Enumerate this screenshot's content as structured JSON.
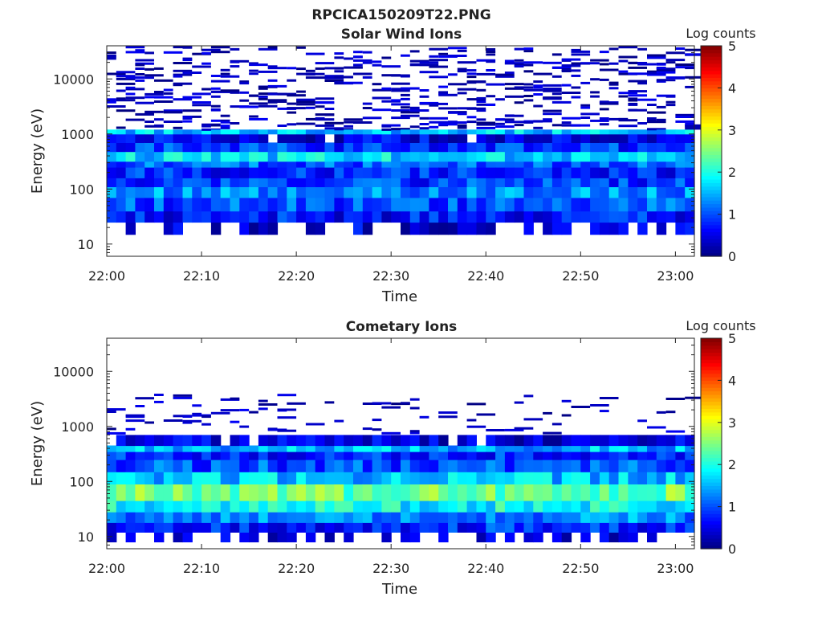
{
  "figure_title": "RPCICA150209T22.PNG",
  "colormap": [
    "#00007f",
    "#0000ff",
    "#007fff",
    "#00ffff",
    "#7fff7f",
    "#ffff00",
    "#ff7f00",
    "#ff0000",
    "#7f0000"
  ],
  "chart_data": [
    {
      "type": "heatmap",
      "title": "Solar Wind Ions",
      "xlabel": "Time",
      "ylabel": "Energy (eV)",
      "y_scale": "log",
      "ylim": [
        6,
        40000
      ],
      "xlim": [
        "22:00",
        "23:02"
      ],
      "x_ticks": [
        "22:00",
        "22:10",
        "22:20",
        "22:30",
        "22:40",
        "22:50",
        "23:00"
      ],
      "y_ticks": [
        "10",
        "100",
        "1000",
        "10000"
      ],
      "colorbar": {
        "label": "Log counts",
        "range": [
          0,
          5
        ],
        "ticks": [
          "0",
          "1",
          "2",
          "3",
          "4",
          "5"
        ]
      },
      "bands": [
        {
          "from": 15,
          "to": 25,
          "level": 0.4
        },
        {
          "from": 25,
          "to": 40,
          "level": 0.7
        },
        {
          "from": 40,
          "to": 70,
          "level": 1.0
        },
        {
          "from": 70,
          "to": 110,
          "level": 1.3
        },
        {
          "from": 110,
          "to": 160,
          "level": 0.9
        },
        {
          "from": 160,
          "to": 250,
          "level": 0.8
        },
        {
          "from": 250,
          "to": 320,
          "level": 1.1
        },
        {
          "from": 320,
          "to": 480,
          "level": 1.7
        },
        {
          "from": 480,
          "to": 700,
          "level": 0.9
        },
        {
          "from": 700,
          "to": 1000,
          "level": 0.5
        },
        {
          "from": 1000,
          "to": 1200,
          "level": 1.6
        }
      ],
      "sparse_above": 1250
    },
    {
      "type": "heatmap",
      "title": "Cometary Ions",
      "xlabel": "Time",
      "ylabel": "Energy (eV)",
      "y_scale": "log",
      "ylim": [
        6,
        40000
      ],
      "xlim": [
        "22:00",
        "23:02"
      ],
      "x_ticks": [
        "22:00",
        "22:10",
        "22:20",
        "22:30",
        "22:40",
        "22:50",
        "23:00"
      ],
      "y_ticks": [
        "10",
        "100",
        "1000",
        "10000"
      ],
      "colorbar": {
        "label": "Log counts",
        "range": [
          0,
          5
        ],
        "ticks": [
          "0",
          "1",
          "2",
          "3",
          "4",
          "5"
        ]
      },
      "bands": [
        {
          "from": 8,
          "to": 12,
          "level": 0.3
        },
        {
          "from": 12,
          "to": 18,
          "level": 0.8
        },
        {
          "from": 18,
          "to": 28,
          "level": 1.3
        },
        {
          "from": 28,
          "to": 45,
          "level": 1.9
        },
        {
          "from": 45,
          "to": 90,
          "level": 2.4
        },
        {
          "from": 90,
          "to": 150,
          "level": 1.6
        },
        {
          "from": 150,
          "to": 250,
          "level": 1.0
        },
        {
          "from": 250,
          "to": 350,
          "level": 0.8
        },
        {
          "from": 350,
          "to": 450,
          "level": 1.5
        },
        {
          "from": 450,
          "to": 700,
          "level": 0.4
        }
      ],
      "sparse_above": 750
    }
  ]
}
